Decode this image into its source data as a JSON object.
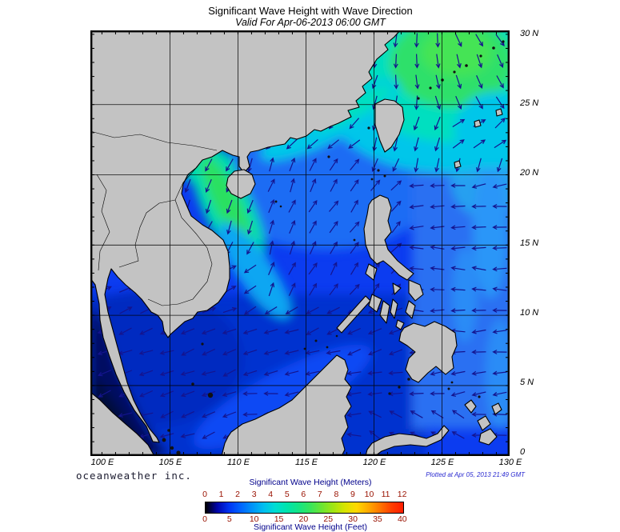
{
  "header": {
    "title": "Significant Wave Height with Wave Direction",
    "subtitle": "Valid For Apr-06-2013 06:00 GMT"
  },
  "axes": {
    "lat_labels": [
      "30 N",
      "25 N",
      "20 N",
      "15 N",
      "10 N",
      "5 N",
      "0"
    ],
    "lon_labels": [
      "100 E",
      "105 E",
      "110 E",
      "115 E",
      "120 E",
      "125 E",
      "130 E"
    ]
  },
  "legend": {
    "meters_title": "Significant Wave Height (Meters)",
    "feet_title": "Significant Wave Height (Feet)",
    "meters_ticks": [
      "0",
      "1",
      "2",
      "3",
      "4",
      "5",
      "6",
      "7",
      "8",
      "9",
      "10",
      "11",
      "12"
    ],
    "feet_ticks": [
      "0",
      "5",
      "10",
      "15",
      "20",
      "25",
      "30",
      "35",
      "40"
    ],
    "gradient_stops": [
      "#000000",
      "#0004aa",
      "#0033f2",
      "#0063ff",
      "#0093f8",
      "#00bff0",
      "#00ddd2",
      "#00e4ac",
      "#14e586",
      "#38e55c",
      "#6ce532",
      "#a2e512",
      "#d8e400",
      "#ffd800",
      "#ffaa00",
      "#ff7600",
      "#ff3e00",
      "#ff1c00"
    ]
  },
  "footer": {
    "credit": "oceanweather inc.",
    "plotted": "Plotted at Apr 05, 2013 21:49 GMT"
  },
  "colors": {
    "land": "#c3c3c3",
    "coast": "#000000",
    "arrow": "#14148e",
    "ocean_base": "#0c3cf0",
    "ocean_south": "#0533cf",
    "ocean_pacific": "#2a70f2",
    "wave_green": "#2ee06a",
    "wave_cyan": "#00c8e8",
    "strait_dark": "#020f62",
    "scale_number_color": "#991100",
    "legend_title_color": "#00008b",
    "plotted_text_color": "#2a2ad0"
  }
}
